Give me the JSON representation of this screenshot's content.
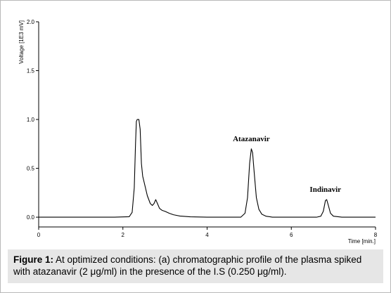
{
  "chart_data": {
    "type": "line",
    "title": "",
    "xlabel": "Time [min.]",
    "ylabel": "Voltage [1E3 mV]",
    "xlim": [
      0,
      8
    ],
    "ylim": [
      -0.1,
      2.0
    ],
    "xticks": [
      "0",
      "2",
      "4",
      "6",
      "8"
    ],
    "yticks": [
      "0.0",
      "0.5",
      "1.0",
      "1.5",
      "2.0"
    ],
    "grid": false,
    "legend": "none",
    "color": "#000000",
    "x": [
      0.0,
      1.8,
      2.15,
      2.22,
      2.27,
      2.3,
      2.32,
      2.34,
      2.38,
      2.41,
      2.44,
      2.47,
      2.52,
      2.58,
      2.65,
      2.7,
      2.74,
      2.78,
      2.82,
      2.87,
      2.93,
      3.0,
      3.1,
      3.2,
      3.35,
      3.6,
      4.0,
      4.8,
      4.9,
      4.96,
      5.01,
      5.05,
      5.08,
      5.12,
      5.17,
      5.23,
      5.3,
      5.4,
      5.55,
      6.6,
      6.7,
      6.76,
      6.81,
      6.84,
      6.88,
      6.93,
      7.0,
      7.2,
      8.0
    ],
    "y": [
      0.0,
      0.0,
      0.005,
      0.05,
      0.3,
      0.75,
      0.98,
      1.0,
      1.0,
      0.9,
      0.55,
      0.42,
      0.33,
      0.22,
      0.14,
      0.12,
      0.14,
      0.18,
      0.14,
      0.09,
      0.07,
      0.06,
      0.04,
      0.025,
      0.012,
      0.004,
      0.0,
      0.0,
      0.04,
      0.2,
      0.55,
      0.7,
      0.66,
      0.45,
      0.2,
      0.08,
      0.03,
      0.01,
      0.0,
      0.0,
      0.01,
      0.06,
      0.17,
      0.18,
      0.12,
      0.04,
      0.01,
      0.0,
      0.0
    ],
    "annotations": [
      {
        "text": "Atazanavir",
        "x": 5.05,
        "y": 0.7
      },
      {
        "text": "Indinavir",
        "x": 6.81,
        "y": 0.18
      }
    ]
  },
  "caption": {
    "label": "Figure 1:",
    "text": " At optimized conditions: (a) chromatographic profile of the plasma spiked with atazanavir (2 μg/ml) in the presence of the I.S (0.250 μg/ml)."
  }
}
